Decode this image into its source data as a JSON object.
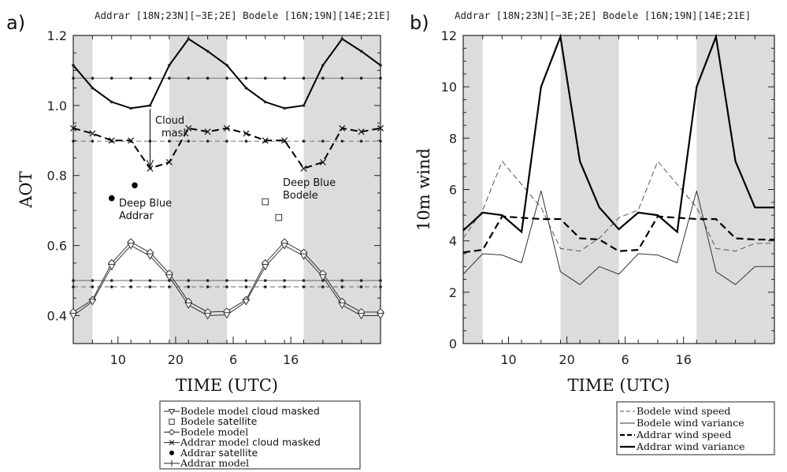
{
  "chart_data": [
    {
      "panel": "a)",
      "type": "line",
      "title": "Addrar [18N;23N][−3E;2E] Bodele [16N;19N][14E;21E]",
      "xlabel": "TIME (UTC)",
      "ylabel": "AOT",
      "xlim": [
        0,
        16
      ],
      "ylim": [
        0.32,
        1.2
      ],
      "y_ticks": [
        0.4,
        0.6,
        0.8,
        1.0,
        1.2
      ],
      "y_tick_labels": [
        "0.4",
        "0.6",
        "0.8",
        "1.0",
        "1.2"
      ],
      "x_ticks": [
        2.33,
        5.33,
        8.33,
        11.33
      ],
      "x_tick_labels": [
        "10",
        "20",
        "6",
        "16"
      ],
      "shaded_spans": [
        [
          0,
          1
        ],
        [
          5,
          8
        ],
        [
          12,
          16
        ]
      ],
      "x": [
        0,
        1,
        2,
        3,
        4,
        5,
        6,
        7,
        8,
        9,
        10,
        11,
        12,
        13,
        14,
        15,
        16
      ],
      "series": [
        {
          "name": "Addrar model",
          "style": "solid-thick",
          "values": [
            1.115,
            1.05,
            1.01,
            0.992,
            1.0,
            1.115,
            1.19,
            1.155,
            1.115,
            1.05,
            1.01,
            0.992,
            1.0,
            1.115,
            1.19,
            1.155,
            1.115
          ],
          "mean": 1.078
        },
        {
          "name": "Addrar model cloud masked",
          "style": "dashed-thick-x",
          "values": [
            0.935,
            0.92,
            0.9,
            0.9,
            0.82,
            0.838,
            0.935,
            0.925,
            0.935,
            0.92,
            0.9,
            0.9,
            0.82,
            0.838,
            0.935,
            0.925,
            0.935
          ],
          "mean": 0.898
        },
        {
          "name": "Bodele model",
          "style": "thin-diamond",
          "values": [
            0.41,
            0.445,
            0.55,
            0.61,
            0.58,
            0.52,
            0.44,
            0.41,
            0.412,
            0.445,
            0.55,
            0.61,
            0.58,
            0.52,
            0.44,
            0.41,
            0.41
          ],
          "mean": 0.5
        },
        {
          "name": "Bodele model cloud masked",
          "style": "thin-triangle",
          "values": [
            0.4,
            0.44,
            0.54,
            0.6,
            0.57,
            0.51,
            0.43,
            0.4,
            0.402,
            0.44,
            0.54,
            0.6,
            0.57,
            0.51,
            0.43,
            0.4,
            0.4
          ],
          "mean": 0.482
        },
        {
          "name": "Addrar satellite",
          "style": "filled-dot",
          "points": [
            [
              2.0,
              0.735
            ],
            [
              3.2,
              0.772
            ]
          ]
        },
        {
          "name": "Bodele satellite",
          "style": "open-square",
          "points": [
            [
              10.0,
              0.725
            ],
            [
              10.7,
              0.68
            ]
          ]
        }
      ],
      "annotations": [
        {
          "text": "Cloud",
          "line2": "mask"
        },
        {
          "text": "Deep Blue",
          "line2": "Addrar"
        },
        {
          "text": "Deep Blue",
          "line2": "Bodele"
        }
      ]
    },
    {
      "panel": "b)",
      "type": "line",
      "title": "Addrar [18N;23N][−3E;2E] Bodele [16N;19N][14E;21E]",
      "xlabel": "TIME (UTC)",
      "ylabel": "10m wind",
      "xlim": [
        0,
        16
      ],
      "ylim": [
        0,
        12
      ],
      "y_ticks": [
        0,
        2,
        4,
        6,
        8,
        10,
        12
      ],
      "y_tick_labels": [
        "0",
        "2",
        "4",
        "6",
        "8",
        "10",
        "12"
      ],
      "x_ticks": [
        2.33,
        5.33,
        8.33,
        11.33
      ],
      "x_tick_labels": [
        "10",
        "20",
        "6",
        "16"
      ],
      "shaded_spans": [
        [
          0,
          1
        ],
        [
          5,
          8
        ],
        [
          12,
          16
        ]
      ],
      "x": [
        0,
        1,
        2,
        3,
        4,
        5,
        6,
        7,
        8,
        9,
        10,
        11,
        12,
        13,
        14,
        15,
        16
      ],
      "series": [
        {
          "name": "Bodele wind speed",
          "style": "thin-dashed",
          "values": [
            4.1,
            5.2,
            7.1,
            6.2,
            5.3,
            3.7,
            3.6,
            4.1,
            4.9,
            5.2,
            7.1,
            6.2,
            5.3,
            3.7,
            3.6,
            3.9,
            3.9
          ]
        },
        {
          "name": "Bodele wind variance",
          "style": "thin-solid",
          "values": [
            2.7,
            3.5,
            3.45,
            3.15,
            5.95,
            2.8,
            2.3,
            3.0,
            2.7,
            3.5,
            3.45,
            3.15,
            5.95,
            2.8,
            2.3,
            3.0,
            3.0
          ]
        },
        {
          "name": "Addrar wind speed",
          "style": "thick-dashed",
          "values": [
            3.55,
            3.65,
            4.95,
            4.9,
            4.85,
            4.85,
            4.1,
            4.05,
            3.6,
            3.65,
            4.95,
            4.9,
            4.85,
            4.85,
            4.1,
            4.05,
            4.05
          ]
        },
        {
          "name": "Addrar wind variance",
          "style": "thick-solid",
          "values": [
            4.4,
            5.1,
            5.0,
            4.35,
            10.0,
            11.95,
            7.1,
            5.3,
            4.45,
            5.1,
            5.0,
            4.35,
            10.0,
            11.95,
            7.1,
            5.3,
            5.3
          ]
        }
      ]
    }
  ],
  "legend_a": [
    {
      "label": "Bodele model",
      "suffix": "cloud masked"
    },
    {
      "label": "Bodele",
      "suffix": "satellite"
    },
    {
      "label": "Bodele model",
      "suffix": ""
    },
    {
      "label": "Addrar model",
      "suffix": "cloud masked"
    },
    {
      "label": "Addrar",
      "suffix": "satellite"
    },
    {
      "label": "Addrar model",
      "suffix": ""
    }
  ],
  "legend_b": [
    {
      "label": "Bodele wind speed"
    },
    {
      "label": "Bodele wind variance"
    },
    {
      "label": "Addrar wind speed"
    },
    {
      "label": "Addrar wind variance"
    }
  ]
}
